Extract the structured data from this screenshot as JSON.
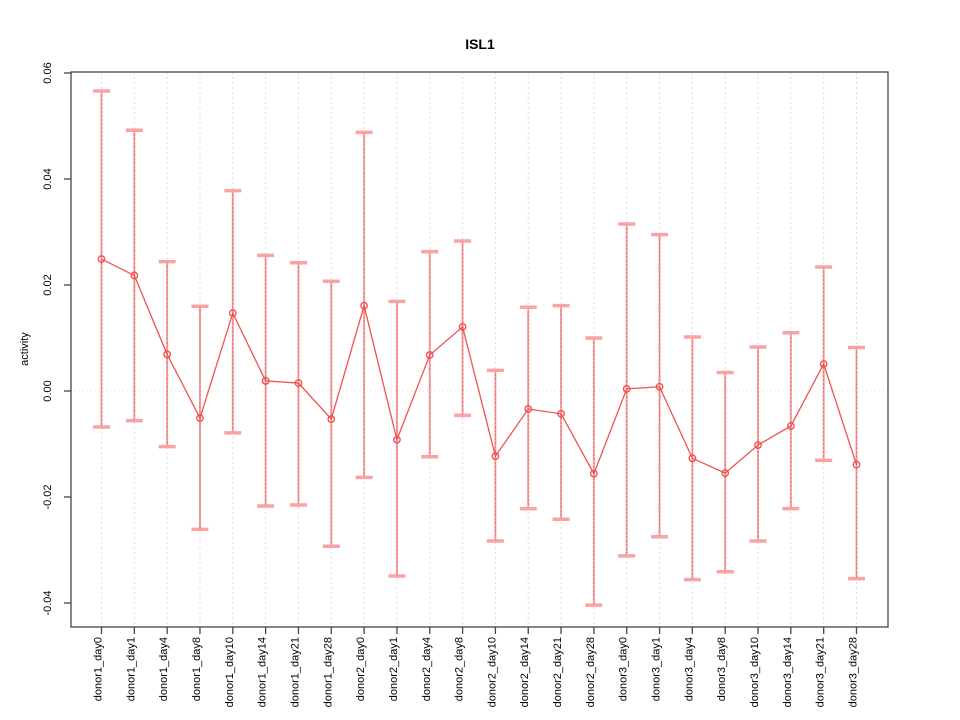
{
  "figure": {
    "title": "ISL1",
    "y_axis_label": "activity"
  },
  "chart_data": {
    "type": "line",
    "title": "ISL1",
    "xlabel": "",
    "ylabel": "activity",
    "legend_position": "none",
    "grid": {
      "vertical_dotted": true,
      "horizontal_zero_dotted": true
    },
    "ylim": [
      -0.0445,
      0.0602
    ],
    "yticks": [
      0.06,
      0.04,
      0.02,
      0.0,
      -0.02,
      -0.04
    ],
    "ytick_labels": [
      "0.06",
      "0.04",
      "0.02",
      "0.00",
      "-0.02",
      "-0.04"
    ],
    "categories": [
      "donor1_day0",
      "donor1_day1",
      "donor1_day4",
      "donor1_day8",
      "donor1_day10",
      "donor1_day14",
      "donor1_day21",
      "donor1_day28",
      "donor2_day0",
      "donor2_day1",
      "donor2_day4",
      "donor2_day8",
      "donor2_day10",
      "donor2_day14",
      "donor2_day21",
      "donor2_day28",
      "donor3_day0",
      "donor3_day1",
      "donor3_day4",
      "donor3_day8",
      "donor3_day10",
      "donor3_day14",
      "donor3_day21",
      "donor3_day28"
    ],
    "series": [
      {
        "name": "activity",
        "marker": "open-circle",
        "values": [
          0.0249,
          0.0218,
          0.0069,
          -0.0051,
          0.0147,
          0.0019,
          0.0015,
          -0.0053,
          0.0161,
          -0.0092,
          0.0068,
          0.0121,
          -0.0123,
          -0.0034,
          -0.0043,
          -0.0156,
          0.0004,
          0.0008,
          -0.0127,
          -0.0155,
          -0.0102,
          -0.0066,
          0.0051,
          -0.0139
        ],
        "error_low": [
          -0.0068,
          -0.0056,
          -0.0105,
          -0.0261,
          -0.0079,
          -0.0217,
          -0.0215,
          -0.0293,
          -0.0163,
          -0.0349,
          -0.0124,
          -0.0046,
          -0.0283,
          -0.0222,
          -0.0242,
          -0.0404,
          -0.0311,
          -0.0275,
          -0.0356,
          -0.0341,
          -0.0283,
          -0.0222,
          -0.0131,
          -0.0354
        ],
        "error_high": [
          0.0566,
          0.0492,
          0.0244,
          0.016,
          0.0378,
          0.0256,
          0.0242,
          0.0207,
          0.0488,
          0.0169,
          0.0263,
          0.0283,
          0.0039,
          0.0158,
          0.0161,
          0.01,
          0.0315,
          0.0295,
          0.0102,
          0.0035,
          0.0083,
          0.011,
          0.0234,
          0.0082
        ]
      }
    ],
    "colors": {
      "line": "#ef5350",
      "point": "#ef5350",
      "error_bar": "#f58a8a",
      "error_bar_overlay": "#e05252",
      "error_cap": "#f99f9f",
      "grid": "#dcdcdc",
      "axis": "#454545",
      "text": "#000000",
      "background": "#ffffff"
    }
  }
}
